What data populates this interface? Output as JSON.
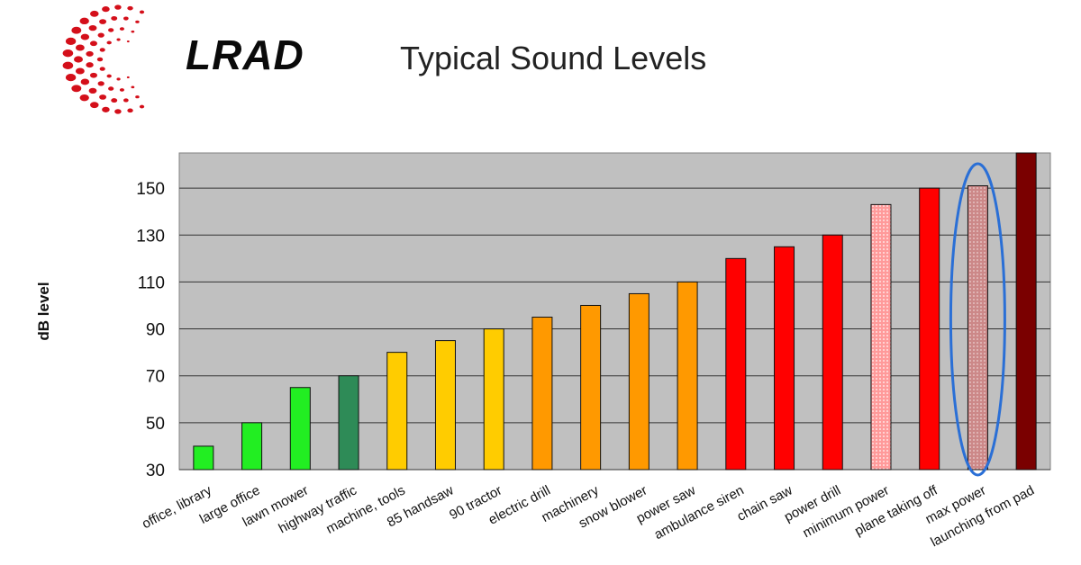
{
  "header": {
    "logo_text": "LRAD",
    "title": "Typical Sound Levels"
  },
  "chart_data": {
    "type": "bar",
    "title": "Typical Sound Levels",
    "ylabel": "dB level",
    "xlabel": "",
    "ylim": [
      30,
      165
    ],
    "yticks": [
      30,
      50,
      70,
      90,
      110,
      130,
      150
    ],
    "grid": true,
    "legend": "none",
    "categories": [
      "office, library",
      "large office",
      "lawn mower",
      "highway traffic",
      "machine, tools",
      "85 handsaw",
      "90 tractor",
      "electric drill",
      "machinery",
      "snow blower",
      "power saw",
      "ambulance siren",
      "chain saw",
      "power drill",
      "minimum power",
      "plane taking off",
      "max power",
      "launching from pad"
    ],
    "values": [
      40,
      50,
      65,
      70,
      80,
      85,
      90,
      95,
      100,
      105,
      110,
      120,
      125,
      130,
      143,
      150,
      151,
      165
    ],
    "colors": [
      "#22ee22",
      "#22ee22",
      "#22ee22",
      "#2e8b57",
      "#ffcc00",
      "#ffcc00",
      "#ffcc00",
      "#ff9900",
      "#ff9900",
      "#ff9900",
      "#ff9900",
      "#ff0000",
      "#ff0000",
      "#ff0000",
      "#ff9a9a",
      "#ff0000",
      "#cc8888",
      "#7a0000"
    ],
    "highlight_index": 16,
    "highlight_color": "#2a6fd6",
    "plot_background": "#c0c0c0"
  }
}
